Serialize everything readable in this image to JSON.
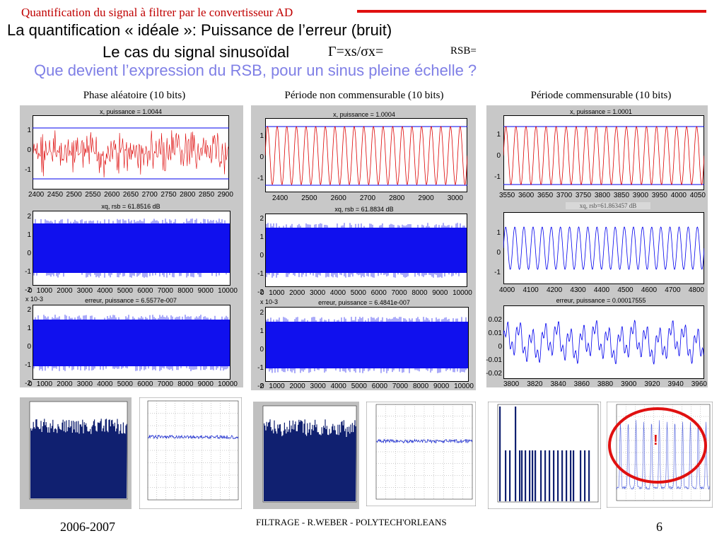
{
  "header": {
    "course_title": "Quantification du signal à filtrer par le convertisseur AD"
  },
  "slide": {
    "title": "La quantification « idéale »: Puissance de l’erreur (bruit)",
    "subtitle": "Le cas du signal sinusoïdal",
    "formula": "Γ=xs/σx=",
    "rsb_label": "RSB=",
    "question": "Que devient l’expression du RSB, pour un sinus pleine échelle ?"
  },
  "columns": [
    {
      "heading": "Phase aléatoire (10 bits)",
      "x_title": "x, puissance = 1.0044",
      "x_xticks": [
        "2400",
        "2450",
        "2500",
        "2550",
        "2600",
        "2650",
        "2700",
        "2750",
        "2800",
        "2850",
        "2900"
      ],
      "x_yticks": [
        "1",
        "0",
        "-1"
      ],
      "xq_title": "xq, rsb = 61.8516 dB",
      "xq_xticks": [
        "0",
        "1000",
        "2000",
        "3000",
        "4000",
        "5000",
        "6000",
        "7000",
        "8000",
        "9000",
        "10000"
      ],
      "xq_yticks": [
        "2",
        "1",
        "0",
        "-1",
        "-2"
      ],
      "err_title": "erreur, puissance = 6.5577e-007",
      "err_xticks": [
        "0",
        "1000",
        "2000",
        "3000",
        "4000",
        "5000",
        "6000",
        "7000",
        "8000",
        "9000",
        "10000"
      ],
      "err_yticks": [
        "2",
        "1",
        "0",
        "-1",
        "-2"
      ],
      "err_scale": "x 10-3"
    },
    {
      "heading": "Période non commensurable (10 bits)",
      "x_title": "x, puissance = 1.0004",
      "x_xticks": [
        "2400",
        "2500",
        "2600",
        "2700",
        "2800",
        "2900",
        "3000"
      ],
      "x_yticks": [
        "1",
        "0",
        "-1"
      ],
      "xq_title": "xq, rsb = 61.8834 dB",
      "xq_xticks": [
        "0",
        "1000",
        "2000",
        "3000",
        "4000",
        "5000",
        "6000",
        "7000",
        "8000",
        "9000",
        "10000"
      ],
      "xq_yticks": [
        "2",
        "1",
        "0",
        "-1",
        "-2"
      ],
      "err_title": "erreur, puissance = 6.4841e-007",
      "err_xticks": [
        "0",
        "1000",
        "2000",
        "3000",
        "4000",
        "5000",
        "6000",
        "7000",
        "8000",
        "9000",
        "10000"
      ],
      "err_yticks": [
        "2",
        "1",
        "0",
        "-1",
        "-2"
      ],
      "err_scale": "x 10-3"
    },
    {
      "heading": "Période  commensurable (10 bits)",
      "x_title": "x, puissance = 1.0001",
      "x_xticks": [
        "3550",
        "3600",
        "3650",
        "3700",
        "3750",
        "3800",
        "3850",
        "3900",
        "3950",
        "4000",
        "4050"
      ],
      "x_yticks": [
        "1",
        "0",
        "-1"
      ],
      "xq_title": "xq, rsb=61.863457 dB",
      "xq_xticks": [
        "4000",
        "4100",
        "4200",
        "4300",
        "4400",
        "4500",
        "4600",
        "4700",
        "4800"
      ],
      "xq_yticks": [
        "1",
        "0",
        "-1"
      ],
      "err_title": "erreur, puissance = 0.00017555",
      "err_xticks": [
        "3800",
        "3820",
        "3840",
        "3860",
        "3880",
        "3900",
        "3920",
        "3940",
        "3960"
      ],
      "err_yticks": [
        "0.02",
        "0.01",
        "0",
        "-0.01",
        "-0.02"
      ]
    }
  ],
  "footer": {
    "year": "2006-2007",
    "center": "FILTRAGE  - R.WEBER - POLYTECH'ORLEANS",
    "page": "6"
  },
  "annotation": {
    "mark": "!"
  },
  "colors": {
    "signal": "#dd0000",
    "quant": "#0000ee",
    "accent": "#e01010",
    "question": "#7f7fe6"
  }
}
